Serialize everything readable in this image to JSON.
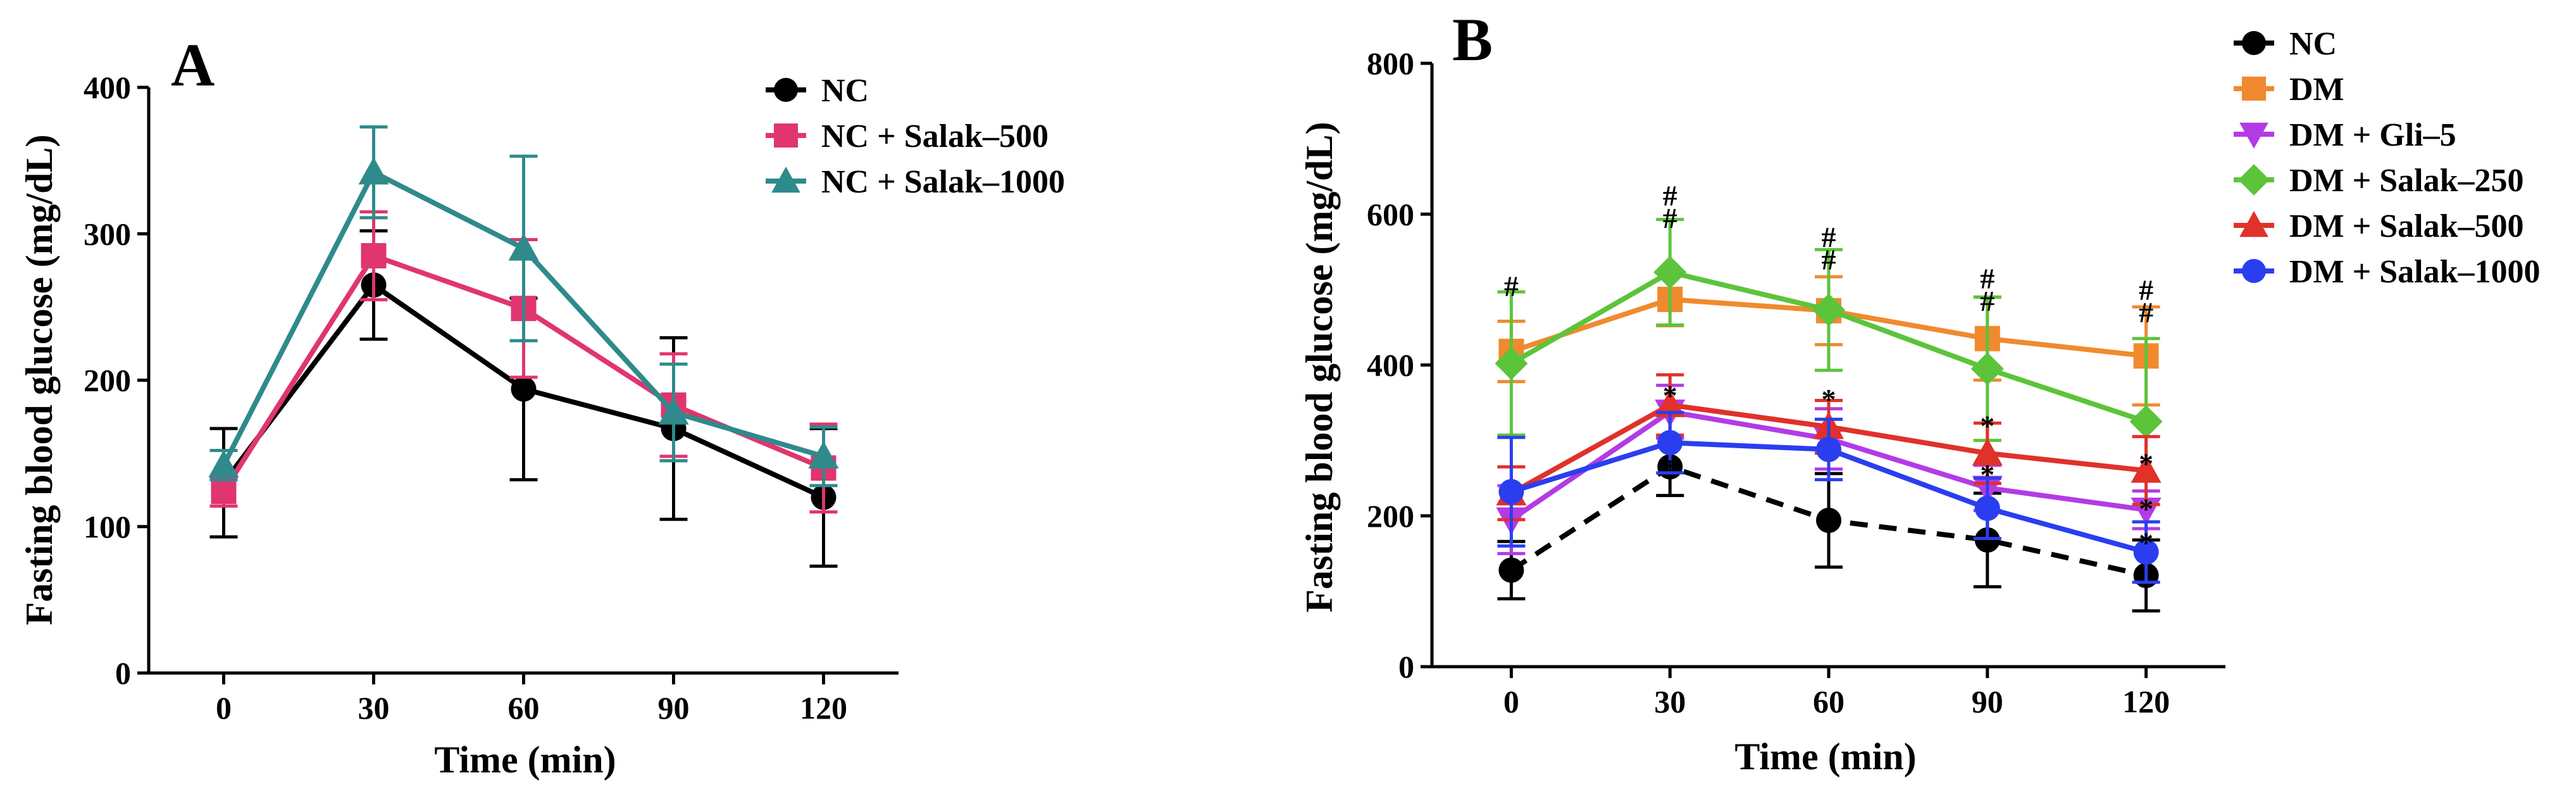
{
  "chart_data": [
    {
      "type": "line",
      "panel": "A",
      "xlabel": "Time (min)",
      "ylabel": "Fasting blood glucose (mg/dL)",
      "x": [
        0,
        30,
        60,
        90,
        120
      ],
      "x_ticks": [
        "0",
        "30",
        "60",
        "90",
        "120"
      ],
      "xlim": [
        -15,
        135
      ],
      "ylim": [
        0,
        400
      ],
      "y_ticks": [
        0,
        100,
        200,
        300,
        400
      ],
      "grid": false,
      "legend_position": "top-right",
      "series": [
        {
          "name": "NC",
          "color": "#000000",
          "marker": "circle",
          "dashed": false,
          "values": [
            130,
            265,
            194,
            167,
            120
          ],
          "errors": [
            37,
            37,
            62,
            62,
            47
          ]
        },
        {
          "name": "NC + Salak–500",
          "color": "#e0356e",
          "marker": "square",
          "dashed": false,
          "values": [
            124,
            285,
            249,
            183,
            140
          ],
          "errors": [
            10,
            30,
            47,
            35,
            30
          ]
        },
        {
          "name": "NC + Salak–1000",
          "color": "#2f8a8c",
          "marker": "triangle",
          "dashed": false,
          "values": [
            142,
            342,
            290,
            178,
            148
          ],
          "errors": [
            10,
            31,
            63,
            33,
            20
          ]
        }
      ]
    },
    {
      "type": "line",
      "panel": "B",
      "xlabel": "Time (min)",
      "ylabel": "Fasting blood glucose (mg/dL)",
      "x": [
        0,
        30,
        60,
        90,
        120
      ],
      "x_ticks": [
        "0",
        "30",
        "60",
        "90",
        "120"
      ],
      "xlim": [
        -15,
        135
      ],
      "ylim": [
        0,
        800
      ],
      "y_ticks": [
        0,
        200,
        400,
        600,
        800
      ],
      "grid": false,
      "legend_position": "top-right",
      "series": [
        {
          "name": "NC",
          "color": "#000000",
          "marker": "circle",
          "dashed": true,
          "values": [
            128,
            265,
            194,
            168,
            121
          ],
          "errors": [
            38,
            38,
            62,
            62,
            47
          ]
        },
        {
          "name": "DM",
          "color": "#f08a2e",
          "marker": "square",
          "dashed": false,
          "values": [
            418,
            487,
            472,
            435,
            412
          ],
          "errors": [
            40,
            35,
            45,
            55,
            65
          ]
        },
        {
          "name": "DM + Gli–5",
          "color": "#b23be6",
          "marker": "triangle-down",
          "dashed": false,
          "values": [
            195,
            338,
            302,
            237,
            208
          ],
          "errors": [
            45,
            35,
            40,
            30,
            25
          ]
        },
        {
          "name": "DM + Salak–250",
          "color": "#5cc43a",
          "marker": "diamond",
          "dashed": false,
          "values": [
            402,
            523,
            473,
            395,
            325
          ],
          "errors": [
            95,
            70,
            80,
            95,
            110
          ]
        },
        {
          "name": "DM + Salak–500",
          "color": "#e0312a",
          "marker": "triangle",
          "dashed": false,
          "values": [
            230,
            347,
            318,
            283,
            260
          ],
          "errors": [
            35,
            40,
            35,
            40,
            45
          ]
        },
        {
          "name": "DM + Salak–1000",
          "color": "#2a3ef0",
          "marker": "circle",
          "dashed": false,
          "values": [
            232,
            297,
            288,
            210,
            152
          ],
          "errors": [
            72,
            40,
            40,
            40,
            40
          ]
        }
      ],
      "annotations": [
        {
          "text": "#",
          "x": 0,
          "y": 505
        },
        {
          "text": "#",
          "x": 30,
          "y": 625
        },
        {
          "text": "#",
          "x": 30,
          "y": 595
        },
        {
          "text": "*",
          "x": 30,
          "y": 360
        },
        {
          "text": "*",
          "x": 30,
          "y": 262
        },
        {
          "text": "#",
          "x": 60,
          "y": 570
        },
        {
          "text": "#",
          "x": 60,
          "y": 540
        },
        {
          "text": "*",
          "x": 60,
          "y": 355
        },
        {
          "text": "#",
          "x": 90,
          "y": 515
        },
        {
          "text": "#",
          "x": 90,
          "y": 485
        },
        {
          "text": "*",
          "x": 90,
          "y": 320
        },
        {
          "text": "*",
          "x": 90,
          "y": 255
        },
        {
          "text": "#",
          "x": 120,
          "y": 500
        },
        {
          "text": "#",
          "x": 120,
          "y": 470
        },
        {
          "text": "*",
          "x": 120,
          "y": 270
        },
        {
          "text": "*",
          "x": 120,
          "y": 210
        },
        {
          "text": "*",
          "x": 120,
          "y": 165
        }
      ]
    }
  ]
}
